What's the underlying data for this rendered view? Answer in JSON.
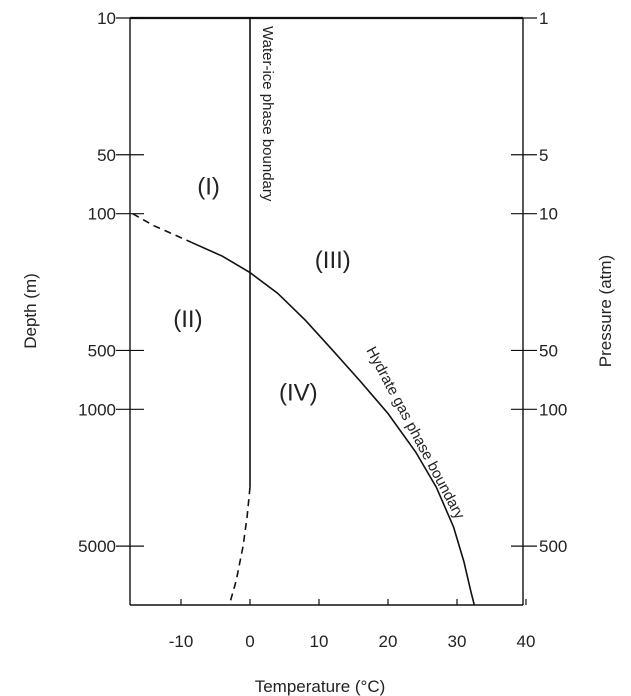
{
  "chart_data": {
    "type": "line",
    "title": "",
    "xlabel": "Temperature (°C)",
    "ylabel_left": "Depth (m)",
    "ylabel_right": "Pressure  (atm)",
    "x_ticks": [
      -10,
      0,
      10,
      20,
      30,
      40
    ],
    "xlim": [
      -17,
      40
    ],
    "y_scale": "log",
    "depth_ticks": [
      10,
      50,
      100,
      500,
      1000,
      5000
    ],
    "depth_tick_labels": [
      "10",
      "50",
      "100",
      "500",
      "1000",
      "5000"
    ],
    "pressure_ticks": [
      1,
      5,
      10,
      50,
      100,
      500
    ],
    "pressure_tick_labels": [
      "1",
      "5",
      "10",
      "50",
      "100",
      "500"
    ],
    "depth_lim": [
      10,
      10000
    ],
    "grid": false,
    "regions": [
      {
        "label": "(I)",
        "x": -6,
        "depth": 80
      },
      {
        "label": "(II)",
        "x": -9,
        "depth": 380
      },
      {
        "label": "(III)",
        "x": 12,
        "depth": 190
      },
      {
        "label": "(IV)",
        "x": 7,
        "depth": 900
      }
    ],
    "series": [
      {
        "name": "Water-ice phase boundary",
        "segments": [
          {
            "style": "solid",
            "points": [
              [
                0,
                10
              ],
              [
                0,
                2500
              ]
            ]
          },
          {
            "style": "dashed",
            "points": [
              [
                0,
                2500
              ],
              [
                -0.4,
                3500
              ],
              [
                -1.0,
                5000
              ],
              [
                -2.0,
                7500
              ],
              [
                -3.0,
                10000
              ]
            ]
          }
        ]
      },
      {
        "name": "Hydrate gas phase boundary",
        "segments": [
          {
            "style": "dashed",
            "points": [
              [
                -17,
                100
              ],
              [
                -14,
                115
              ],
              [
                -11,
                128
              ],
              [
                -8.5,
                140
              ]
            ]
          },
          {
            "style": "solid",
            "points": [
              [
                -8.5,
                140
              ],
              [
                -4,
                165
              ],
              [
                0,
                200
              ],
              [
                4,
                255
              ],
              [
                8,
                350
              ],
              [
                12,
                500
              ],
              [
                16,
                720
              ],
              [
                20,
                1050
              ],
              [
                24,
                1650
              ],
              [
                27,
                2500
              ],
              [
                29.5,
                4000
              ],
              [
                31,
                6000
              ],
              [
                32,
                8500
              ],
              [
                32.5,
                10000
              ]
            ]
          }
        ]
      }
    ]
  }
}
